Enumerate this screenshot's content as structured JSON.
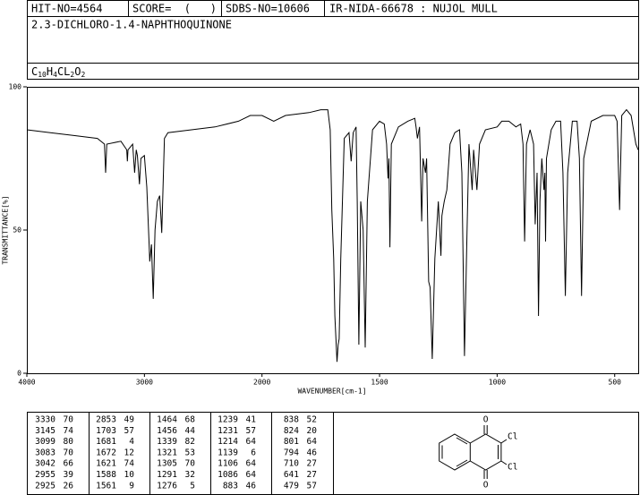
{
  "header": {
    "hit_no": "HIT-NO=4564",
    "score": "SCORE=  (   )",
    "sdbs_no": "SDBS-NO=10606",
    "ir_id": "IR-NIDA-66678 : NUJOL MULL",
    "name": "2.3-DICHLORO-1.4-NAPHTHOQUINONE",
    "formula_parts": [
      "C",
      "10",
      "H",
      "4",
      "CL",
      "2",
      "O",
      "2"
    ]
  },
  "chart_data": {
    "type": "line",
    "xlabel": "WAVENUMBER[cm-1]",
    "ylabel": "TRANSMITTANCE[%]",
    "xlim": [
      4000,
      400
    ],
    "ylim": [
      0,
      100
    ],
    "xticks": [
      4000,
      3000,
      2000,
      1500,
      1000,
      500
    ],
    "yticks": [
      0,
      50,
      100
    ],
    "scale_change_at": 2000,
    "scale_ratio": 2,
    "color": "#000000",
    "x": [
      4000,
      3800,
      3600,
      3400,
      3340,
      3330,
      3320,
      3200,
      3150,
      3145,
      3140,
      3100,
      3083,
      3070,
      3060,
      3042,
      3030,
      3000,
      2980,
      2960,
      2955,
      2940,
      2925,
      2910,
      2890,
      2870,
      2860,
      2853,
      2845,
      2830,
      2800,
      2600,
      2400,
      2200,
      2100,
      2000,
      1950,
      1900,
      1800,
      1750,
      1720,
      1710,
      1703,
      1695,
      1690,
      1681,
      1676,
      1672,
      1665,
      1650,
      1630,
      1621,
      1612,
      1600,
      1595,
      1588,
      1580,
      1570,
      1561,
      1552,
      1530,
      1500,
      1480,
      1470,
      1464,
      1460,
      1456,
      1450,
      1420,
      1380,
      1350,
      1345,
      1339,
      1330,
      1321,
      1315,
      1305,
      1300,
      1291,
      1285,
      1276,
      1265,
      1250,
      1239,
      1235,
      1231,
      1225,
      1214,
      1200,
      1180,
      1160,
      1150,
      1139,
      1128,
      1120,
      1106,
      1100,
      1086,
      1075,
      1050,
      1000,
      980,
      950,
      920,
      900,
      890,
      883,
      875,
      860,
      845,
      838,
      830,
      824,
      818,
      810,
      801,
      797,
      794,
      790,
      770,
      750,
      730,
      720,
      710,
      700,
      680,
      660,
      650,
      641,
      632,
      600,
      550,
      500,
      490,
      479,
      470,
      450,
      430,
      410,
      400
    ],
    "values": [
      85,
      84,
      83,
      82,
      80,
      70,
      80,
      81,
      78,
      74,
      78,
      80,
      70,
      78,
      76,
      66,
      75,
      76,
      65,
      45,
      39,
      45,
      26,
      50,
      60,
      62,
      55,
      49,
      60,
      82,
      84,
      85,
      86,
      88,
      90,
      90,
      88,
      90,
      91,
      92,
      92,
      85,
      57,
      40,
      20,
      4,
      10,
      12,
      40,
      82,
      84,
      74,
      84,
      86,
      60,
      10,
      60,
      50,
      9,
      60,
      85,
      88,
      87,
      80,
      68,
      75,
      44,
      80,
      86,
      88,
      89,
      86,
      82,
      86,
      53,
      75,
      70,
      75,
      32,
      30,
      5,
      40,
      60,
      41,
      55,
      57,
      60,
      64,
      80,
      84,
      85,
      70,
      6,
      50,
      80,
      64,
      78,
      64,
      80,
      85,
      86,
      88,
      88,
      86,
      87,
      80,
      46,
      80,
      85,
      80,
      52,
      70,
      20,
      60,
      75,
      64,
      70,
      46,
      75,
      85,
      88,
      88,
      70,
      27,
      70,
      88,
      88,
      75,
      27,
      75,
      88,
      90,
      90,
      88,
      57,
      90,
      92,
      90,
      80,
      78
    ]
  },
  "peak_table": [
    [
      3330,
      70
    ],
    [
      3145,
      74
    ],
    [
      3099,
      80
    ],
    [
      3083,
      70
    ],
    [
      3042,
      66
    ],
    [
      2955,
      39
    ],
    [
      2925,
      26
    ],
    [
      2853,
      49
    ],
    [
      1703,
      57
    ],
    [
      1681,
      4
    ],
    [
      1672,
      12
    ],
    [
      1621,
      74
    ],
    [
      1588,
      10
    ],
    [
      1561,
      9
    ],
    [
      1464,
      68
    ],
    [
      1456,
      44
    ],
    [
      1339,
      82
    ],
    [
      1321,
      53
    ],
    [
      1305,
      70
    ],
    [
      1291,
      32
    ],
    [
      1276,
      5
    ],
    [
      1239,
      41
    ],
    [
      1231,
      57
    ],
    [
      1214,
      64
    ],
    [
      1139,
      6
    ],
    [
      1106,
      64
    ],
    [
      1086,
      64
    ],
    [
      883,
      46
    ],
    [
      838,
      52
    ],
    [
      824,
      20
    ],
    [
      801,
      64
    ],
    [
      794,
      46
    ],
    [
      710,
      27
    ],
    [
      641,
      27
    ],
    [
      479,
      57
    ]
  ],
  "structure": {
    "atoms": [
      "O",
      "Cl",
      "Cl",
      "O"
    ]
  }
}
